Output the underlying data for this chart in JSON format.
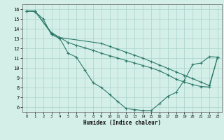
{
  "xlabel": "Humidex (Indice chaleur)",
  "background_color": "#d4eee8",
  "grid_color": "#a8d4cc",
  "line_color": "#2d7a6a",
  "xlim": [
    -0.5,
    23.5
  ],
  "ylim": [
    5.5,
    16.5
  ],
  "xticks": [
    0,
    1,
    2,
    3,
    4,
    5,
    6,
    7,
    8,
    9,
    10,
    11,
    12,
    13,
    14,
    15,
    16,
    17,
    18,
    19,
    20,
    21,
    22,
    23
  ],
  "yticks": [
    6,
    7,
    8,
    9,
    10,
    11,
    12,
    13,
    14,
    15,
    16
  ],
  "line1_x": [
    0,
    1,
    2,
    3,
    4,
    5,
    6,
    7,
    8,
    9,
    10,
    11,
    12,
    13,
    14,
    15,
    16,
    17,
    18,
    19,
    20,
    21,
    22,
    23
  ],
  "line1_y": [
    15.8,
    15.75,
    15.0,
    13.4,
    13.0,
    11.5,
    11.1,
    9.8,
    8.5,
    8.0,
    7.3,
    6.55,
    5.85,
    5.75,
    5.65,
    5.65,
    6.35,
    7.1,
    7.5,
    8.75,
    10.35,
    10.5,
    11.15,
    11.1
  ],
  "line2_x": [
    0,
    1,
    3,
    4,
    5,
    6,
    7,
    8,
    9,
    10,
    11,
    12,
    13,
    14,
    15,
    16,
    17,
    18,
    19,
    20,
    21,
    22,
    23
  ],
  "line2_y": [
    15.8,
    15.8,
    13.5,
    13.1,
    12.6,
    12.3,
    12.05,
    11.8,
    11.5,
    11.25,
    11.0,
    10.75,
    10.5,
    10.25,
    10.0,
    9.7,
    9.3,
    8.85,
    8.55,
    8.3,
    8.1,
    8.05,
    11.1
  ],
  "line3_x": [
    0,
    1,
    3,
    4,
    9,
    10,
    11,
    12,
    13,
    14,
    15,
    16,
    17,
    18,
    19,
    20,
    21,
    22,
    23
  ],
  "line3_y": [
    15.8,
    15.8,
    13.6,
    13.1,
    12.5,
    12.2,
    11.9,
    11.6,
    11.3,
    11.0,
    10.65,
    10.3,
    9.95,
    9.6,
    9.25,
    8.9,
    8.55,
    8.2,
    11.1
  ]
}
